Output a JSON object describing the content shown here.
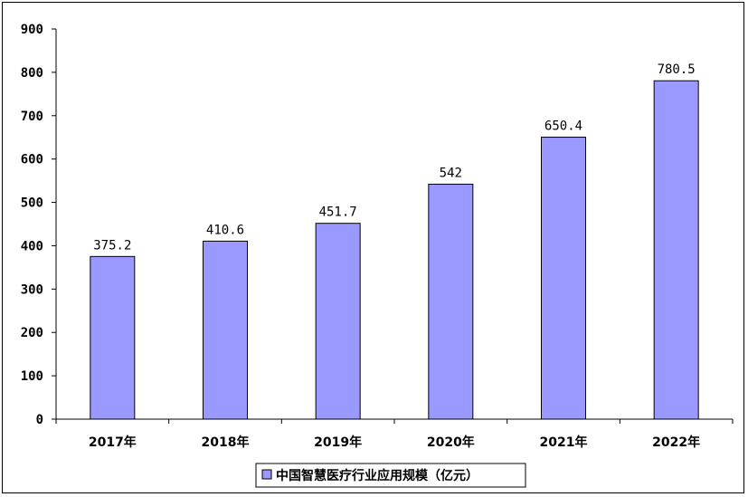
{
  "chart_data": {
    "type": "bar",
    "categories": [
      "2017年",
      "2018年",
      "2019年",
      "2020年",
      "2021年",
      "2022年"
    ],
    "series": [
      {
        "name": "中国智慧医疗行业应用规模（亿元）",
        "values": [
          375.2,
          410.6,
          451.7,
          542,
          650.4,
          780.5
        ]
      }
    ],
    "data_labels": [
      "375.2",
      "410.6",
      "451.7",
      "542",
      "650.4",
      "780.5"
    ],
    "ylim": [
      0,
      900
    ],
    "yticks": [
      0,
      100,
      200,
      300,
      400,
      500,
      600,
      700,
      800,
      900
    ],
    "grid": false,
    "legend_position": "bottom",
    "colors": {
      "bar_fill": "#9999ff",
      "bar_stroke": "#000000",
      "axis": "#000000"
    }
  }
}
